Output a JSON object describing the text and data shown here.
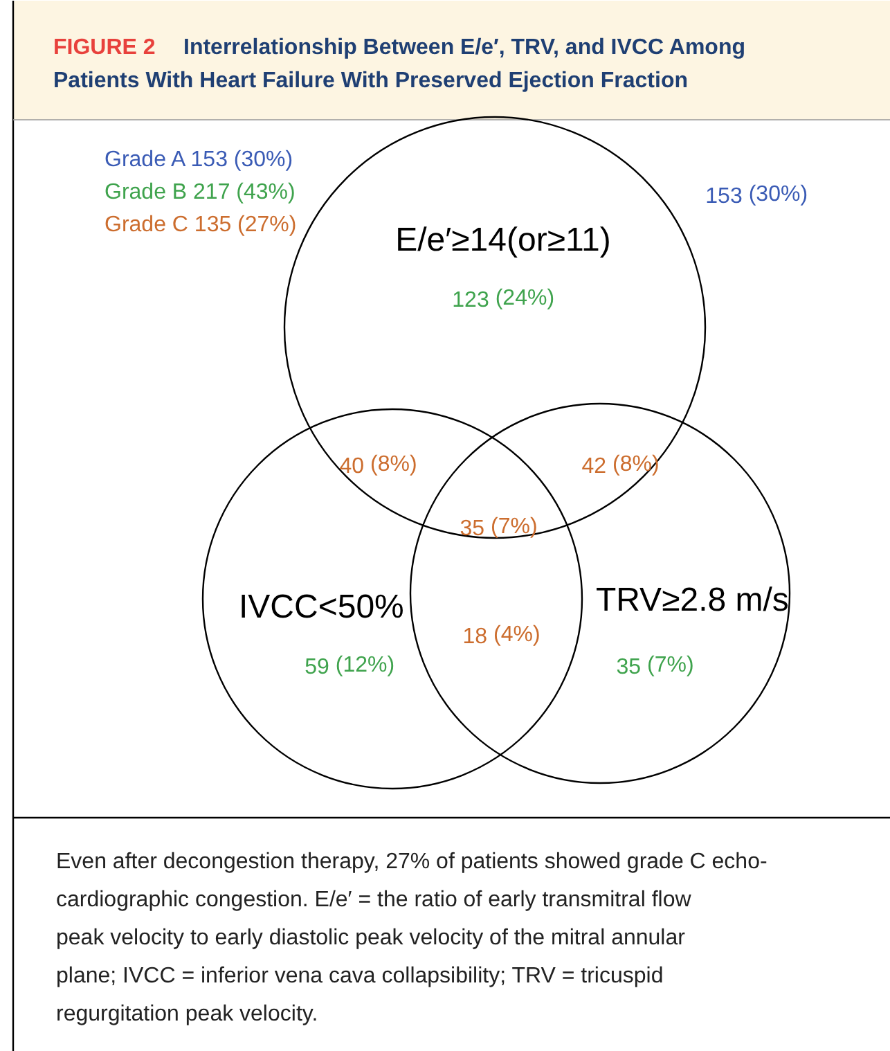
{
  "chart_data": {
    "type": "other",
    "title": "FIGURE 2 Interrelationship Between E/e′, TRV, and IVCC Among Patients With Heart Failure With Preserved Ejection Fraction",
    "categories": [
      "(30%)",
      "(24%)",
      "(12%)",
      "(7%)",
      "(8%)",
      "(8%)",
      "(7%)",
      "(4%)"
    ],
    "values": [
      153,
      123,
      59,
      35,
      40,
      42,
      35,
      18
    ],
    "data_labels": true,
    "colors": [
      "#3a5bb5",
      "#3fa34d",
      "#3fa34d",
      "#3fa34d",
      "#cc6d2e",
      "#cc6d2e",
      "#cc6d2e",
      "#cc6d2e"
    ],
    "annotations": [
      "E/e′≥14(or≥11)",
      "IVCC<50%",
      "TRV≥2.8 m/s",
      "Even after decongestion therapy, 27% of patients showed grade C echo-cardiographic congestion. E/e′ = the ratio of early transmitral flow peak velocity to early diastolic peak velocity of the mitral annular plane; IVCC = inferior vena cava collapsibility; TRV = tricuspid regurgitation peak velocity.",
      "Grade A 153 (30%)",
      "Grade B 217 (43%)",
      "Grade C 135 (27%)"
    ]
  }
}
